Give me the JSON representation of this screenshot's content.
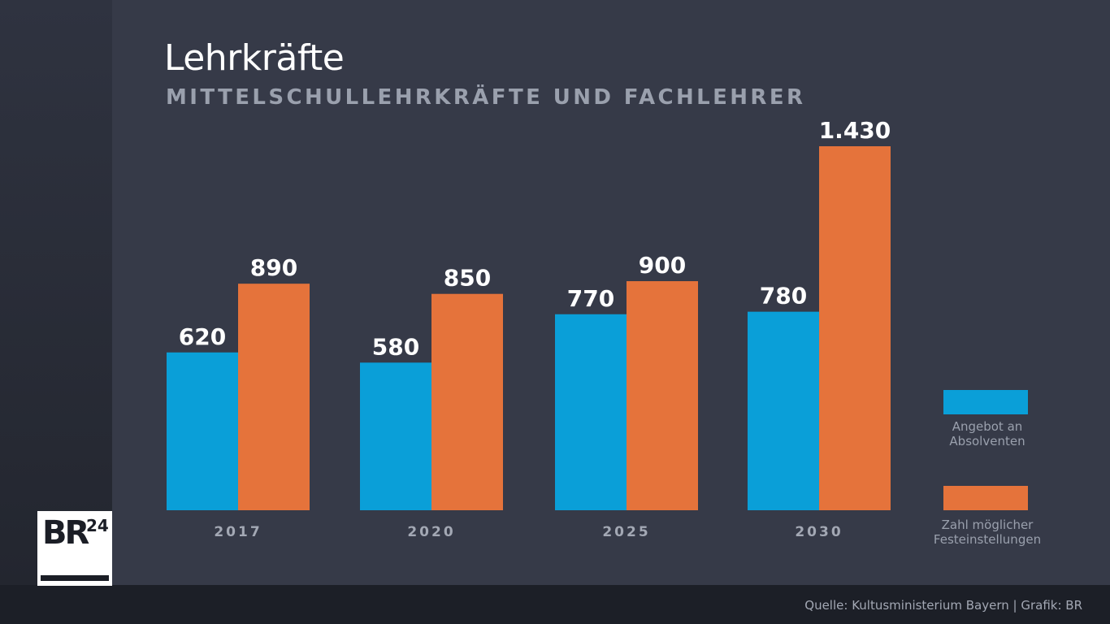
{
  "header": {
    "title": "Lehrkräfte",
    "subtitle": "MITTELSCHULLEHRKRÄFTE UND FACHLEHRER"
  },
  "chart_data": {
    "type": "bar",
    "title": "Lehrkräfte",
    "subtitle": "MITTELSCHULLEHRKRÄFTE UND FACHLEHRER",
    "xlabel": "",
    "ylabel": "",
    "categories": [
      "2017",
      "2020",
      "2025",
      "2030"
    ],
    "series": [
      {
        "name": "Angebot an Absolventen",
        "color": "#0a9fd8",
        "values": [
          620,
          580,
          770,
          780
        ],
        "labels": [
          "620",
          "580",
          "770",
          "780"
        ]
      },
      {
        "name": "Zahl möglicher Festeinstellungen",
        "color": "#e5733b",
        "values": [
          890,
          850,
          900,
          1430
        ],
        "labels": [
          "890",
          "850",
          "900",
          "1.430"
        ]
      }
    ],
    "ylim": [
      0,
      1430
    ],
    "grid": false,
    "legend_position": "right"
  },
  "legend": {
    "items": [
      {
        "label_line1": "Angebot an",
        "label_line2": "Absolventen",
        "color": "#0a9fd8"
      },
      {
        "label_line1": "Zahl möglicher",
        "label_line2": "Festeinstellungen",
        "color": "#e5733b"
      }
    ]
  },
  "logo": {
    "main": "BR",
    "sup": "24"
  },
  "footer": {
    "source": "Quelle: Kultusministerium Bayern | Grafik: BR"
  }
}
